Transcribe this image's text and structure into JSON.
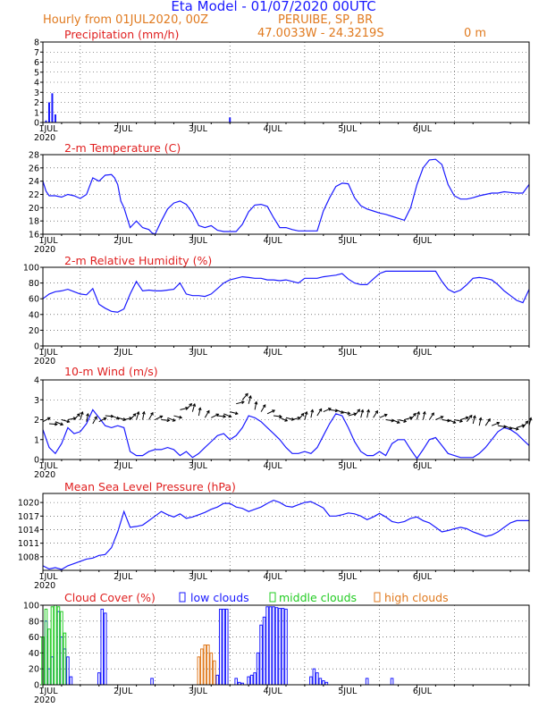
{
  "header": {
    "title": "Eta Model - 01/07/2020 00UTC",
    "subtitle": "Hourly from 01JUL2020, 00Z",
    "location": "PERUIBE, SP, BR",
    "coords": "47.0033W - 24.3219S",
    "elevation": "0   m"
  },
  "colors": {
    "blue": "#1a1aff",
    "red": "#e02020",
    "orange": "#e07a1f",
    "green": "#22cc22",
    "black": "#000000"
  },
  "x_axis": {
    "labels": [
      "1JUL",
      "2JUL",
      "3JUL",
      "4JUL",
      "5JUL",
      "6JUL"
    ],
    "year": "2020",
    "range_hours": [
      0,
      156
    ]
  },
  "chart_data": [
    {
      "type": "bar",
      "title": "Precipitation (mm/h)",
      "ylim": [
        0,
        8
      ],
      "yticks": [
        0,
        1,
        2,
        3,
        4,
        5,
        6,
        7,
        8
      ],
      "x": [
        1,
        2,
        3,
        4,
        60
      ],
      "values": [
        0.2,
        2,
        2.9,
        0.8,
        0.5
      ]
    },
    {
      "type": "line",
      "title": "2-m Temperature (C)",
      "ylim": [
        16,
        28
      ],
      "yticks": [
        16,
        18,
        20,
        22,
        24,
        26,
        28
      ],
      "x": [
        0,
        1,
        2,
        4,
        6,
        8,
        10,
        12,
        14,
        16,
        18,
        20,
        22,
        23,
        24,
        25,
        26,
        28,
        30,
        32,
        34,
        35,
        36,
        38,
        40,
        42,
        44,
        46,
        48,
        50,
        52,
        54,
        56,
        58,
        60,
        62,
        64,
        66,
        68,
        70,
        72,
        74,
        76,
        78,
        80,
        82,
        84,
        86,
        88,
        90,
        92,
        94,
        96,
        98,
        100,
        102,
        104,
        106,
        108,
        110,
        112,
        114,
        116,
        118,
        120,
        122,
        124,
        126,
        128,
        130,
        132,
        134,
        136,
        138,
        140,
        142,
        144,
        146,
        148,
        150,
        152,
        154,
        156
      ],
      "values": [
        24,
        22.5,
        21.8,
        21.8,
        21.6,
        22,
        21.8,
        21.4,
        22,
        24.5,
        24,
        24.9,
        25,
        24.5,
        23.5,
        21,
        20,
        17,
        18,
        17,
        16.7,
        16.2,
        16,
        18,
        19.8,
        20.7,
        21,
        20.5,
        19.2,
        17.3,
        17,
        17.3,
        16.6,
        16.4,
        16.4,
        16.4,
        17.5,
        19.4,
        20.4,
        20.5,
        20.2,
        18.5,
        17,
        17,
        16.7,
        16.5,
        16.5,
        16.5,
        16.5,
        19.5,
        21.5,
        23.2,
        23.7,
        23.6,
        21.5,
        20.3,
        19.8,
        19.5,
        19.2,
        19,
        18.7,
        18.4,
        18.1,
        20,
        23.5,
        26,
        27.2,
        27.3,
        26.5,
        23.5,
        21.8,
        21.3,
        21.3,
        21.5,
        21.8,
        22,
        22.2,
        22.2,
        22.4,
        22.3,
        22.2,
        22.2,
        23.5
      ]
    },
    {
      "type": "line",
      "title": "2-m Relative Humidity (%)",
      "ylim": [
        0,
        100
      ],
      "yticks": [
        0,
        20,
        40,
        60,
        80,
        100
      ],
      "x": [
        0,
        2,
        4,
        6,
        8,
        10,
        12,
        14,
        16,
        18,
        20,
        22,
        24,
        26,
        28,
        30,
        32,
        34,
        36,
        38,
        40,
        42,
        44,
        46,
        48,
        50,
        52,
        54,
        56,
        58,
        60,
        62,
        64,
        66,
        68,
        70,
        72,
        74,
        76,
        78,
        80,
        82,
        84,
        86,
        88,
        90,
        92,
        94,
        96,
        98,
        100,
        102,
        104,
        106,
        108,
        110,
        112,
        114,
        116,
        118,
        120,
        122,
        124,
        126,
        128,
        130,
        132,
        134,
        136,
        138,
        140,
        142,
        144,
        146,
        148,
        150,
        152,
        154,
        156
      ],
      "values": [
        60,
        66,
        69,
        70,
        72,
        69,
        66,
        65,
        73,
        53,
        48,
        44,
        43,
        47,
        66,
        82,
        70,
        71,
        70,
        70,
        71,
        72,
        80,
        66,
        64,
        64,
        63,
        66,
        73,
        80,
        84,
        86,
        88,
        87,
        86,
        86,
        84,
        84,
        83,
        84,
        82,
        80,
        86,
        86,
        86,
        88,
        89,
        90,
        92,
        85,
        80,
        78,
        78,
        85,
        92,
        95,
        95,
        95,
        95,
        95,
        95,
        95,
        95,
        95,
        82,
        72,
        68,
        71,
        78,
        86,
        87,
        86,
        84,
        78,
        70,
        64,
        58,
        55,
        72
      ]
    },
    {
      "type": "line",
      "title": "10-m Wind (m/s)",
      "ylim": [
        0,
        4
      ],
      "yticks": [
        0,
        1,
        2,
        3,
        4
      ],
      "x": [
        0,
        2,
        4,
        6,
        8,
        10,
        12,
        14,
        16,
        18,
        20,
        22,
        24,
        26,
        28,
        30,
        32,
        34,
        36,
        38,
        40,
        42,
        44,
        46,
        48,
        50,
        52,
        54,
        56,
        58,
        60,
        62,
        64,
        66,
        68,
        70,
        72,
        74,
        76,
        78,
        80,
        82,
        84,
        86,
        88,
        90,
        92,
        94,
        96,
        98,
        100,
        102,
        104,
        106,
        108,
        110,
        112,
        114,
        116,
        118,
        120,
        122,
        124,
        126,
        128,
        130,
        132,
        134,
        136,
        138,
        140,
        142,
        144,
        146,
        148,
        150,
        152,
        154,
        156
      ],
      "values": [
        1.5,
        0.6,
        0.3,
        0.8,
        1.6,
        1.3,
        1.4,
        1.8,
        2.5,
        2.1,
        1.7,
        1.6,
        1.7,
        1.6,
        0.4,
        0.2,
        0.2,
        0.4,
        0.5,
        0.5,
        0.6,
        0.5,
        0.2,
        0.4,
        0.1,
        0.3,
        0.6,
        0.9,
        1.2,
        1.3,
        1.0,
        1.2,
        1.6,
        2.2,
        2.1,
        1.9,
        1.6,
        1.3,
        1.0,
        0.6,
        0.3,
        0.3,
        0.4,
        0.3,
        0.6,
        1.2,
        1.8,
        2.3,
        2.2,
        1.6,
        0.9,
        0.4,
        0.2,
        0.2,
        0.4,
        0.2,
        0.8,
        1.0,
        1.0,
        0.5,
        0.05,
        0.5,
        1.0,
        1.1,
        0.7,
        0.3,
        0.2,
        0.1,
        0.1,
        0.1,
        0.3,
        0.6,
        1.0,
        1.4,
        1.6,
        1.5,
        1.3,
        1.0,
        0.7
      ],
      "barb_heights": [
        1.9,
        1.8,
        1.9,
        2,
        2,
        2,
        2,
        1.9,
        1.8,
        1.9,
        2.2,
        2.2,
        2.1,
        2,
        2,
        2,
        2,
        2,
        2,
        2,
        2.1,
        2.2,
        2.5,
        2.5,
        2.4,
        2.2,
        2.1,
        2.1,
        2.2,
        2.3,
        2.4,
        2.8,
        3,
        2.8,
        2.5,
        2.4,
        2.3,
        2.2,
        2.1,
        2.1,
        2,
        2,
        2,
        2.1,
        2.2,
        2.4,
        2.5,
        2.5,
        2.4,
        2.2,
        2.2,
        2.1,
        2.1,
        2.1,
        2.1,
        2,
        2,
        2,
        2,
        2,
        2,
        2,
        2,
        2,
        2,
        2,
        2,
        2,
        1.9,
        1.8,
        1.7,
        1.7,
        1.7,
        1.7,
        1.7,
        1.6,
        1.6,
        1.6,
        1.7
      ]
    },
    {
      "type": "line",
      "title": "Mean Sea Level Pressure (hPa)",
      "ylim": [
        1005,
        1022
      ],
      "yticks": [
        1008,
        1011,
        1014,
        1017,
        1020
      ],
      "x": [
        0,
        2,
        4,
        6,
        8,
        10,
        12,
        14,
        16,
        18,
        20,
        22,
        24,
        26,
        28,
        30,
        32,
        34,
        36,
        38,
        40,
        42,
        44,
        46,
        48,
        50,
        52,
        54,
        56,
        58,
        60,
        62,
        64,
        66,
        68,
        70,
        72,
        74,
        76,
        78,
        80,
        82,
        84,
        86,
        88,
        90,
        92,
        94,
        96,
        98,
        100,
        102,
        104,
        106,
        108,
        110,
        112,
        114,
        116,
        118,
        120,
        122,
        124,
        126,
        128,
        130,
        132,
        134,
        136,
        138,
        140,
        142,
        144,
        146,
        148,
        150,
        152,
        154,
        156
      ],
      "values": [
        1006,
        1005.3,
        1005.6,
        1005.2,
        1006,
        1006.5,
        1007,
        1007.5,
        1007.7,
        1008.3,
        1008.5,
        1010,
        1013.5,
        1018,
        1014.5,
        1014.7,
        1015,
        1016,
        1017,
        1018,
        1017.3,
        1016.8,
        1017.5,
        1016.5,
        1016.8,
        1017.3,
        1017.8,
        1018.5,
        1019,
        1019.8,
        1019.8,
        1019,
        1018.7,
        1018,
        1018.5,
        1019,
        1019.8,
        1020.5,
        1020,
        1019.2,
        1019,
        1019.5,
        1020,
        1020.2,
        1019.5,
        1018.8,
        1017,
        1017,
        1017.3,
        1017.7,
        1017.5,
        1017,
        1016.2,
        1016.8,
        1017.6,
        1016.8,
        1015.8,
        1015.5,
        1015.8,
        1016.5,
        1016.8,
        1016,
        1015.5,
        1014.5,
        1013.5,
        1013.8,
        1014.2,
        1014.5,
        1014.2,
        1013.5,
        1013,
        1012.5,
        1012.8,
        1013.5,
        1014.5,
        1015.5,
        1016,
        1016,
        1016
      ],
      "first_point": [
        0,
        1006
      ]
    },
    {
      "type": "bar",
      "title": "Cloud Cover (%)",
      "legend": [
        "low clouds",
        "middle clouds",
        "high clouds"
      ],
      "ylim": [
        0,
        100
      ],
      "yticks": [
        0,
        20,
        40,
        60,
        80,
        100
      ],
      "series": [
        {
          "name": "low clouds",
          "x": [
            1,
            2,
            3,
            5,
            6,
            7,
            8,
            9,
            18,
            19,
            20,
            35,
            56,
            57,
            58,
            59,
            62,
            63,
            64,
            66,
            67,
            68,
            69,
            70,
            71,
            72,
            73,
            74,
            75,
            76,
            77,
            78,
            86,
            87,
            88,
            89,
            90,
            91,
            104,
            112
          ],
          "values": [
            80,
            20,
            35,
            92,
            60,
            45,
            35,
            10,
            15,
            95,
            90,
            8,
            12,
            95,
            95,
            95,
            8,
            3,
            2,
            10,
            12,
            15,
            40,
            75,
            85,
            98,
            98,
            98,
            97,
            96,
            96,
            95,
            10,
            20,
            15,
            8,
            5,
            3,
            8,
            8
          ]
        },
        {
          "name": "middle clouds",
          "x": [
            0,
            1,
            2,
            3,
            4,
            5,
            6,
            7
          ],
          "values": [
            60,
            95,
            70,
            98,
            100,
            98,
            92,
            65
          ]
        },
        {
          "name": "high clouds",
          "x": [
            50,
            51,
            52,
            53,
            54,
            55
          ],
          "values": [
            35,
            45,
            50,
            50,
            40,
            30
          ]
        }
      ]
    }
  ]
}
